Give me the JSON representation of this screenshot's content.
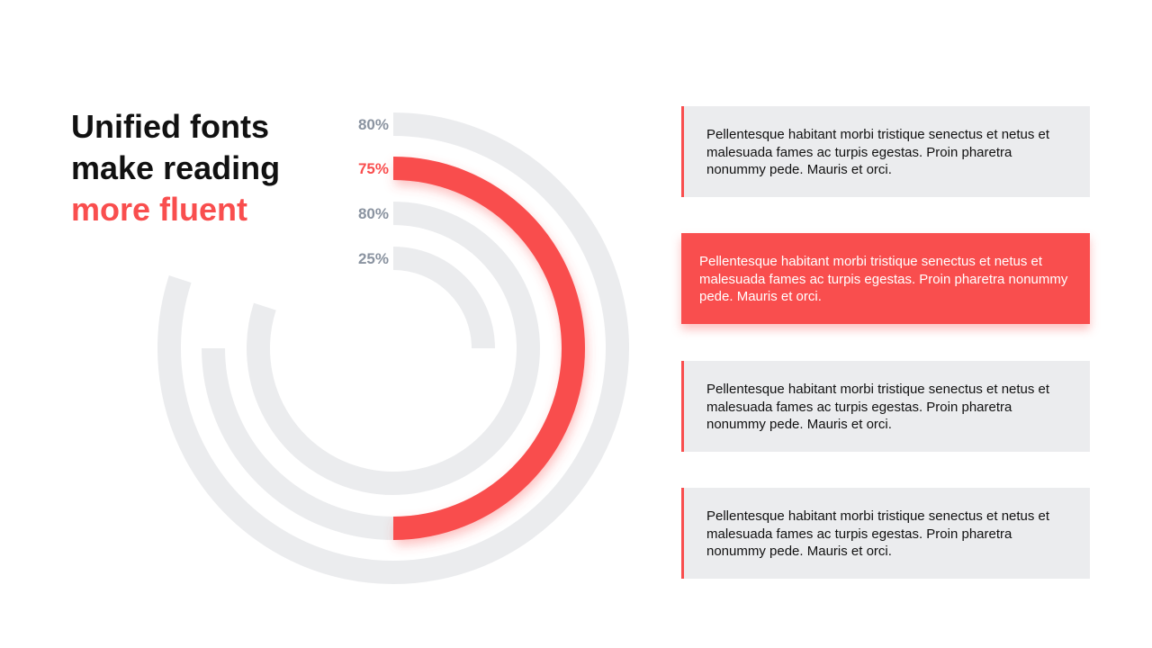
{
  "title": {
    "line1": "Unified fonts",
    "line2": "make reading",
    "line3": "more fluent"
  },
  "colors": {
    "accent": "#f94e4e",
    "track": "#ebecee",
    "label_muted": "#8a93a0",
    "text": "#111111"
  },
  "chart_data": {
    "type": "radial-bar",
    "series": [
      {
        "label": "80%",
        "value": 80,
        "highlight": false
      },
      {
        "label": "75%",
        "value": 75,
        "highlight": true
      },
      {
        "label": "80%",
        "value": 80,
        "highlight": false
      },
      {
        "label": "25%",
        "value": 25,
        "highlight": false
      }
    ]
  },
  "cards": [
    {
      "text": "Pellentesque habitant morbi tristique senectus et netus et malesuada fames ac turpis egestas. Proin pharetra nonummy pede. Mauris et orci.",
      "active": false
    },
    {
      "text": "Pellentesque habitant morbi tristique senectus et netus et malesuada fames ac turpis egestas. Proin pharetra nonummy pede. Mauris et orci.",
      "active": true
    },
    {
      "text": "Pellentesque habitant morbi tristique senectus et netus et malesuada fames ac turpis egestas. Proin pharetra nonummy pede. Mauris et orci.",
      "active": false
    },
    {
      "text": "Pellentesque habitant morbi tristique senectus et netus et malesuada fames ac turpis egestas. Proin pharetra nonummy pede. Mauris et orci.",
      "active": false
    }
  ]
}
